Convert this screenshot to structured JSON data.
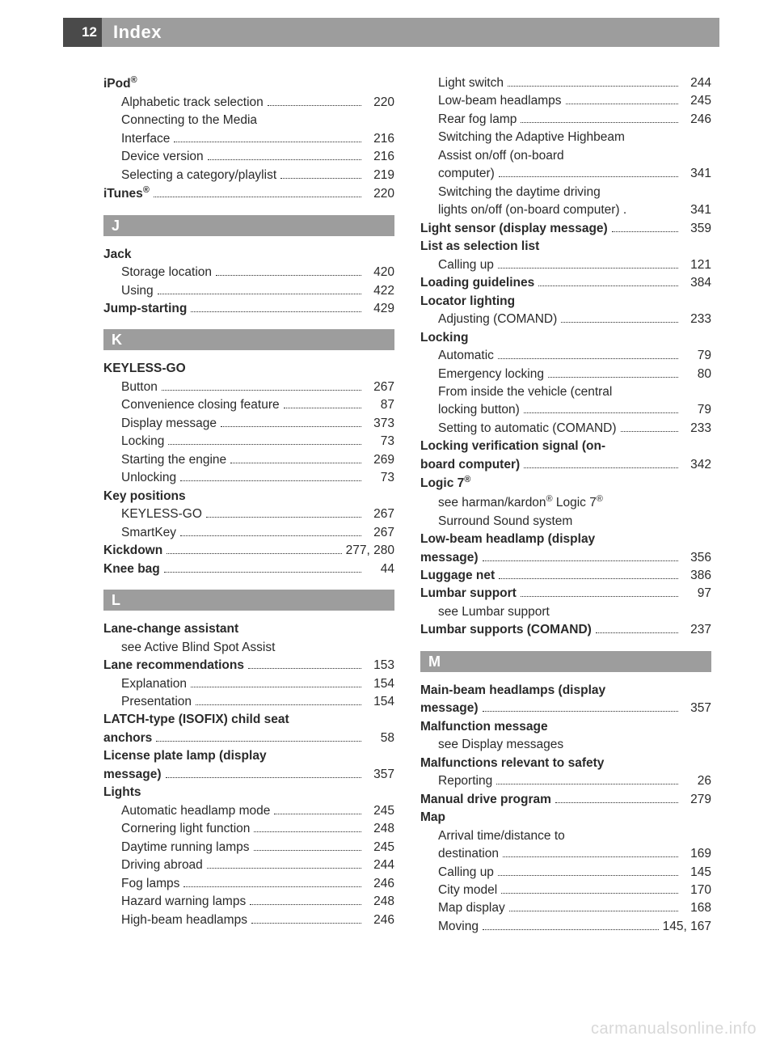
{
  "header": {
    "page_number": "12",
    "title": "Index"
  },
  "watermark": "carmanualsonline.info",
  "letter_bar_bg": "#9d9d9d",
  "col1": [
    {
      "type": "head",
      "text": "iPod®",
      "html": "iPod<sup>®</sup>"
    },
    {
      "type": "sub",
      "text": "Alphabetic track selection",
      "page": "220"
    },
    {
      "type": "subwrap",
      "text1": "Connecting to the Media",
      "text2": "Interface",
      "page": "216"
    },
    {
      "type": "sub",
      "text": "Device version",
      "page": "216"
    },
    {
      "type": "sub",
      "text": "Selecting a category/playlist",
      "page": "219"
    },
    {
      "type": "bold",
      "text": "iTunes®",
      "html": "iTunes<sup>®</sup>",
      "page": "220"
    },
    {
      "type": "letter",
      "text": "J"
    },
    {
      "type": "head",
      "text": "Jack"
    },
    {
      "type": "sub",
      "text": "Storage location",
      "page": "420"
    },
    {
      "type": "sub",
      "text": "Using",
      "page": "422"
    },
    {
      "type": "bold",
      "text": "Jump-starting",
      "page": "429"
    },
    {
      "type": "letter",
      "text": "K"
    },
    {
      "type": "head",
      "text": "KEYLESS-GO"
    },
    {
      "type": "sub",
      "text": "Button",
      "page": "267"
    },
    {
      "type": "sub",
      "text": "Convenience closing feature",
      "page": "87"
    },
    {
      "type": "sub",
      "text": "Display message",
      "page": "373"
    },
    {
      "type": "sub",
      "text": "Locking",
      "page": "73"
    },
    {
      "type": "sub",
      "text": "Starting the engine",
      "page": "269"
    },
    {
      "type": "sub",
      "text": "Unlocking",
      "page": "73"
    },
    {
      "type": "head",
      "text": "Key positions"
    },
    {
      "type": "sub",
      "text": "KEYLESS-GO",
      "page": "267"
    },
    {
      "type": "sub",
      "text": "SmartKey",
      "page": "267"
    },
    {
      "type": "bold",
      "text": "Kickdown",
      "page": "277, 280"
    },
    {
      "type": "bold",
      "text": "Knee bag",
      "page": "44"
    },
    {
      "type": "letter",
      "text": "L"
    },
    {
      "type": "head",
      "text": "Lane-change assistant"
    },
    {
      "type": "see",
      "text": "see Active Blind Spot Assist"
    },
    {
      "type": "bold",
      "text": "Lane recommendations",
      "page": "153"
    },
    {
      "type": "sub",
      "text": "Explanation",
      "page": "154"
    },
    {
      "type": "sub",
      "text": "Presentation",
      "page": "154"
    },
    {
      "type": "boldwrap",
      "text1": "LATCH-type (ISOFIX) child seat",
      "text2": "anchors",
      "page": "58"
    },
    {
      "type": "boldwrap",
      "text1": "License plate lamp (display",
      "text2": "message)",
      "page": "357"
    },
    {
      "type": "head",
      "text": "Lights"
    },
    {
      "type": "sub",
      "text": "Automatic headlamp mode",
      "page": "245"
    },
    {
      "type": "sub",
      "text": "Cornering light function",
      "page": "248"
    },
    {
      "type": "sub",
      "text": "Daytime running lamps",
      "page": "245"
    },
    {
      "type": "sub",
      "text": "Driving abroad",
      "page": "244"
    },
    {
      "type": "sub",
      "text": "Fog lamps",
      "page": "246"
    },
    {
      "type": "sub",
      "text": "Hazard warning lamps",
      "page": "248"
    },
    {
      "type": "sub",
      "text": "High-beam headlamps",
      "page": "246"
    }
  ],
  "col2": [
    {
      "type": "sub",
      "text": "Light switch",
      "page": "244"
    },
    {
      "type": "sub",
      "text": "Low-beam headlamps",
      "page": "245"
    },
    {
      "type": "sub",
      "text": "Rear fog lamp",
      "page": "246"
    },
    {
      "type": "subwrap",
      "text1": "Switching the Adaptive Highbeam",
      "text2b": "Assist on/off (on-board",
      "text2": "computer)",
      "page": "341"
    },
    {
      "type": "subwrap",
      "text1": "Switching the daytime driving",
      "text2": "lights on/off (on-board computer) .",
      "page": "341",
      "nodots": true
    },
    {
      "type": "bold",
      "text": "Light sensor (display message)",
      "page": "359"
    },
    {
      "type": "head",
      "text": "List as selection list"
    },
    {
      "type": "sub",
      "text": "Calling up",
      "page": "121"
    },
    {
      "type": "bold",
      "text": "Loading guidelines",
      "page": "384"
    },
    {
      "type": "head",
      "text": "Locator lighting"
    },
    {
      "type": "sub",
      "text": "Adjusting (COMAND)",
      "page": "233"
    },
    {
      "type": "head",
      "text": "Locking"
    },
    {
      "type": "sub",
      "text": "Automatic",
      "page": "79"
    },
    {
      "type": "sub",
      "text": "Emergency locking",
      "page": "80"
    },
    {
      "type": "subwrap",
      "text1": "From inside the vehicle (central",
      "text2": "locking button)",
      "page": "79"
    },
    {
      "type": "sub",
      "text": "Setting to automatic (COMAND)",
      "page": "233"
    },
    {
      "type": "boldwrap",
      "text1": "Locking verification signal (on-",
      "text2": "board computer)",
      "page": "342"
    },
    {
      "type": "head",
      "text": "Logic 7®",
      "html": "Logic 7<sup>®</sup>"
    },
    {
      "type": "seewrap",
      "text1": "see harman/kardon® Logic 7®",
      "html1": "see harman/kardon<sup>®</sup> Logic 7<sup>®</sup>",
      "text2": "Surround Sound system"
    },
    {
      "type": "boldwrap",
      "text1": "Low-beam headlamp (display",
      "text2": "message)",
      "page": "356"
    },
    {
      "type": "bold",
      "text": "Luggage net",
      "page": "386"
    },
    {
      "type": "bold",
      "text": "Lumbar support",
      "page": "97"
    },
    {
      "type": "see",
      "text": "see Lumbar support"
    },
    {
      "type": "bold",
      "text": "Lumbar supports (COMAND)",
      "page": "237"
    },
    {
      "type": "letter",
      "text": "M"
    },
    {
      "type": "boldwrap",
      "text1": "Main-beam headlamps (display",
      "text2": "message)",
      "page": "357"
    },
    {
      "type": "head",
      "text": "Malfunction message"
    },
    {
      "type": "see",
      "text": "see Display messages"
    },
    {
      "type": "head",
      "text": "Malfunctions relevant to safety"
    },
    {
      "type": "sub",
      "text": "Reporting",
      "page": "26"
    },
    {
      "type": "bold",
      "text": "Manual drive program",
      "page": "279"
    },
    {
      "type": "head",
      "text": "Map"
    },
    {
      "type": "subwrap",
      "text1": "Arrival time/distance to",
      "text2": "destination",
      "page": "169"
    },
    {
      "type": "sub",
      "text": "Calling up",
      "page": "145"
    },
    {
      "type": "sub",
      "text": "City model",
      "page": "170"
    },
    {
      "type": "sub",
      "text": "Map display",
      "page": "168"
    },
    {
      "type": "sub",
      "text": "Moving",
      "page": "145, 167"
    }
  ]
}
